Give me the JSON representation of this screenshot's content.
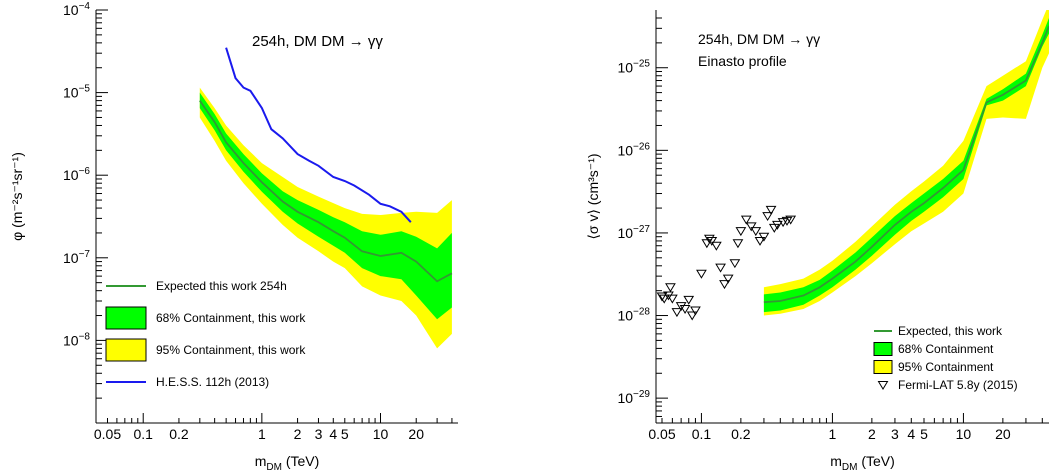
{
  "chart_data": [
    {
      "type": "area",
      "annotation": "254h, DM DM → γγ",
      "xlabel_main": "m",
      "xlabel_sub": "DM",
      "xlabel_tail": " (TeV)",
      "ylabel": "φ (m⁻²s⁻¹sr⁻¹)",
      "xscale": "log",
      "yscale": "log",
      "xlim": [
        0.04,
        45
      ],
      "ylim": [
        1e-09,
        0.0001
      ],
      "grid": false,
      "legend": "bottom-left",
      "x_ticks": [
        {
          "v": 0.05,
          "label": "0.05"
        },
        {
          "v": 0.1,
          "label": "0.1"
        },
        {
          "v": 0.2,
          "label": "0.2"
        },
        {
          "v": 1,
          "label": "1"
        },
        {
          "v": 2,
          "label": "2"
        },
        {
          "v": 3,
          "label": "3"
        },
        {
          "v": 4,
          "label": "4"
        },
        {
          "v": 5,
          "label": "5"
        },
        {
          "v": 10,
          "label": "10"
        },
        {
          "v": 20,
          "label": "20"
        }
      ],
      "y_ticks": [
        {
          "exp": -8,
          "base": "10",
          "sup": "−8"
        },
        {
          "exp": -7,
          "base": "10",
          "sup": "−7"
        },
        {
          "exp": -6,
          "base": "10",
          "sup": "−6"
        },
        {
          "exp": -5,
          "base": "10",
          "sup": "−5"
        },
        {
          "exp": -4,
          "base": "10",
          "sup": "−4"
        }
      ],
      "x": [
        0.3,
        0.4,
        0.5,
        0.7,
        1.0,
        1.5,
        2.0,
        3.0,
        4.0,
        5.0,
        7.0,
        10.0,
        15.0,
        20.0,
        30.0,
        40.0
      ],
      "series": [
        {
          "name": "95% Containment, this work",
          "kind": "band",
          "color": "#ffff00",
          "low": [
            5e-06,
            2.6e-06,
            1.5e-06,
            8e-07,
            4.5e-07,
            2.5e-07,
            1.75e-07,
            1.2e-07,
            9e-08,
            7.5e-08,
            4.5e-08,
            3.5e-08,
            3e-08,
            2e-08,
            8e-09,
            1.2e-08
          ],
          "high": [
            1.15e-05,
            6.5e-06,
            4e-06,
            2.3e-06,
            1.4e-06,
            9.5e-07,
            7.2e-07,
            5.5e-07,
            4.6e-07,
            4e-07,
            3.4e-07,
            3.3e-07,
            3.5e-07,
            3.6e-07,
            3.5e-07,
            5e-07
          ]
        },
        {
          "name": "68% Containment, this work",
          "kind": "band",
          "color": "#00ff00",
          "low": [
            6.5e-06,
            3.5e-06,
            2e-06,
            1.1e-06,
            6.3e-07,
            3.6e-07,
            2.6e-07,
            1.8e-07,
            1.4e-07,
            1.15e-07,
            7.5e-08,
            6e-08,
            5.5e-08,
            3.5e-08,
            1.8e-08,
            2.5e-08
          ],
          "high": [
            1e-05,
            5.5e-06,
            3.2e-06,
            1.8e-06,
            1.05e-06,
            6.4e-07,
            5e-07,
            3.8e-07,
            3.1e-07,
            2.7e-07,
            2.1e-07,
            1.9e-07,
            2.1e-07,
            1.8e-07,
            1.3e-07,
            2e-07
          ]
        },
        {
          "name": "Expected this work 254h",
          "kind": "line",
          "color": "#339933",
          "y": [
            8e-06,
            4.4e-06,
            2.5e-06,
            1.4e-06,
            8.2e-07,
            4.8e-07,
            3.6e-07,
            2.7e-07,
            2.1e-07,
            1.75e-07,
            1.2e-07,
            1.05e-07,
            1.15e-07,
            9e-08,
            5.2e-08,
            6.5e-08
          ]
        },
        {
          "name": "H.E.S.S. 112h (2013)",
          "kind": "line",
          "color": "#1a1aee",
          "x": [
            0.5,
            0.6,
            0.7,
            0.8,
            1.0,
            1.2,
            1.5,
            2.0,
            2.5,
            3.0,
            4.0,
            5.0,
            6.0,
            8.0,
            10.0,
            12.0,
            15.0,
            18.0
          ],
          "y": [
            3.5e-05,
            1.5e-05,
            1.15e-05,
            1.05e-05,
            6.5e-06,
            3.6e-06,
            2.8e-06,
            1.8e-06,
            1.5e-06,
            1.3e-06,
            9.5e-07,
            8.5e-07,
            7.5e-07,
            5.8e-07,
            4.5e-07,
            4.2e-07,
            3.6e-07,
            2.7e-07
          ]
        }
      ],
      "legend_order": [
        "Expected this work 254h",
        "68% Containment, this work",
        "95% Containment, this work",
        "H.E.S.S. 112h (2013)"
      ]
    },
    {
      "type": "area",
      "annotation": "254h, DM DM → γγ",
      "annotation2": "Einasto profile",
      "xlabel_main": "m",
      "xlabel_sub": "DM",
      "xlabel_tail": " (TeV)",
      "ylabel": "⟨σ v⟩ (cm³s⁻¹)",
      "xscale": "log",
      "yscale": "log",
      "xlim": [
        0.045,
        45
      ],
      "ylim": [
        5e-30,
        5e-25
      ],
      "grid": false,
      "legend": "bottom-right",
      "x_ticks": [
        {
          "v": 0.05,
          "label": "0.05"
        },
        {
          "v": 0.1,
          "label": "0.1"
        },
        {
          "v": 0.2,
          "label": "0.2"
        },
        {
          "v": 1,
          "label": "1"
        },
        {
          "v": 2,
          "label": "2"
        },
        {
          "v": 3,
          "label": "3"
        },
        {
          "v": 4,
          "label": "4"
        },
        {
          "v": 5,
          "label": "5"
        },
        {
          "v": 10,
          "label": "10"
        },
        {
          "v": 20,
          "label": "20"
        }
      ],
      "y_ticks": [
        {
          "exp": -29,
          "base": "10",
          "sup": "−29"
        },
        {
          "exp": -28,
          "base": "10",
          "sup": "−28"
        },
        {
          "exp": -27,
          "base": "10",
          "sup": "−27"
        },
        {
          "exp": -26,
          "base": "10",
          "sup": "−26"
        },
        {
          "exp": -25,
          "base": "10",
          "sup": "−25"
        }
      ],
      "x": [
        0.3,
        0.4,
        0.6,
        0.8,
        1.0,
        1.5,
        2.0,
        3.0,
        4.0,
        5.0,
        7.0,
        10.0,
        15.0,
        20.0,
        30.0,
        40.0,
        45.0
      ],
      "series": [
        {
          "name": "95% Containment",
          "kind": "band",
          "color": "#ffff00",
          "low": [
            1e-28,
            1.05e-28,
            1.2e-28,
            1.5e-28,
            1.9e-28,
            3e-28,
            4.3e-28,
            7.3e-28,
            1.05e-27,
            1.3e-27,
            1.8e-27,
            3e-27,
            2.4e-26,
            2.5e-26,
            2.4e-26,
            1e-25,
            1.5e-25
          ],
          "high": [
            2.2e-28,
            2.4e-28,
            2.8e-28,
            3.6e-28,
            4.6e-28,
            7.8e-28,
            1.2e-27,
            2.2e-27,
            3.2e-27,
            4.2e-27,
            6.5e-27,
            1.3e-26,
            6e-26,
            8e-26,
            1.2e-25,
            3.8e-25,
            6e-25
          ]
        },
        {
          "name": "68% Containment",
          "kind": "band",
          "color": "#00ff00",
          "low": [
            1.1e-28,
            1.15e-28,
            1.35e-28,
            1.75e-28,
            2.2e-28,
            3.6e-28,
            5.3e-28,
            9.5e-28,
            1.4e-27,
            1.8e-27,
            2.7e-27,
            4.5e-27,
            3.5e-26,
            4e-26,
            6e-26,
            1.8e-25,
            2.6e-25
          ],
          "high": [
            1.8e-28,
            1.9e-28,
            2.2e-28,
            2.7e-28,
            3.5e-28,
            5.8e-28,
            8.8e-28,
            1.6e-27,
            2.3e-27,
            3e-27,
            4.5e-27,
            7.5e-27,
            4.2e-26,
            5.5e-26,
            8.5e-26,
            2.5e-25,
            4e-25
          ]
        },
        {
          "name": "Expected, this work",
          "kind": "line",
          "color": "#339933",
          "y": [
            1.45e-28,
            1.5e-28,
            1.75e-28,
            2.2e-28,
            2.8e-28,
            4.5e-28,
            6.8e-28,
            1.25e-27,
            1.8e-27,
            2.3e-27,
            3.5e-27,
            5.8e-27,
            3.8e-26,
            4.7e-26,
            7e-26,
            2e-25,
            3.2e-25
          ]
        },
        {
          "name": "Fermi-LAT 5.8y (2015)",
          "kind": "points",
          "color": "#000000",
          "x": [
            0.05,
            0.052,
            0.056,
            0.058,
            0.06,
            0.065,
            0.07,
            0.075,
            0.08,
            0.085,
            0.09,
            0.1,
            0.11,
            0.115,
            0.12,
            0.13,
            0.14,
            0.15,
            0.16,
            0.18,
            0.19,
            0.2,
            0.22,
            0.24,
            0.26,
            0.28,
            0.3,
            0.32,
            0.34,
            0.36,
            0.38,
            0.42,
            0.45,
            0.48
          ],
          "y": [
            1.7e-28,
            1.6e-28,
            1.75e-28,
            2.2e-28,
            1.6e-28,
            1.1e-28,
            1.3e-28,
            1.2e-28,
            1.55e-28,
            1e-28,
            1.15e-28,
            3.2e-28,
            7.5e-28,
            8.5e-28,
            8e-28,
            7e-28,
            3.8e-28,
            2.4e-28,
            2.8e-28,
            4.3e-28,
            7.5e-28,
            1.05e-27,
            1.45e-27,
            1.2e-27,
            1.05e-27,
            8e-28,
            9e-28,
            1.6e-27,
            1.9e-27,
            1.15e-27,
            1.25e-27,
            1.35e-27,
            1.4e-27,
            1.45e-27
          ]
        }
      ],
      "legend_order": [
        "Expected, this work",
        "68% Containment",
        "95% Containment",
        "Fermi-LAT 5.8y (2015)"
      ]
    }
  ]
}
